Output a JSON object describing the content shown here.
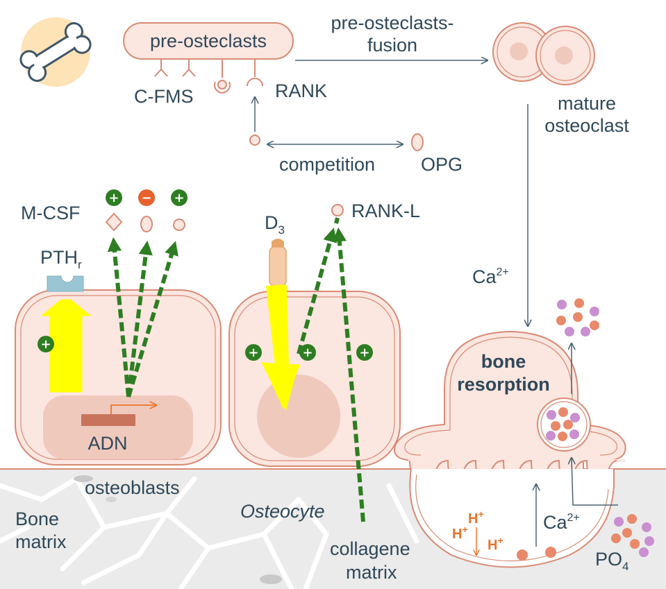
{
  "labels": {
    "pre_osteoclasts": "pre-osteclasts",
    "fusion_line1": "pre-osteclasts-",
    "fusion_line2": "fusion",
    "c_fms": "C-FMS",
    "rank": "RANK",
    "mature_line1": "mature",
    "mature_line2": "osteoclast",
    "competition": "competition",
    "opg": "OPG",
    "m_csf": "M-CSF",
    "pth": "PTH",
    "pth_sub": "r",
    "d3": "D",
    "d3_sub": "3",
    "rank_l": "RANK-L",
    "ca2_top": "Ca",
    "ca2_top_sup": "2+",
    "bone_resorption_line1": "bone",
    "bone_resorption_line2": "resorption",
    "adn": "ADN",
    "osteoblasts": "osteoblasts",
    "osteocyte": "Osteocyte",
    "bone_matrix_line1": "Bone",
    "bone_matrix_line2": "matrix",
    "collagene_line1": "collagene",
    "collagene_line2": "matrix",
    "ca2_bottom": "Ca",
    "ca2_bottom_sup": "2+",
    "po4": "PO",
    "po4_sub": "4",
    "h_plus": "H",
    "h_plus_sup": "+"
  },
  "signs": {
    "plus": "+",
    "minus": "−"
  },
  "colors": {
    "text": "#2f4858",
    "cell_fill": "#fbe6e0",
    "cell_stroke": "#d98a75",
    "nucleus": "#f0c9bd",
    "green_arrow": "#2e7d22",
    "yellow_arrow": "#ffff00",
    "minus_badge": "#e8612c",
    "bone_matrix": "#ebebeb",
    "salmon_dot": "#e8896a",
    "purple_dot": "#c98fd0",
    "receptor_blue": "#9ac6d3"
  }
}
